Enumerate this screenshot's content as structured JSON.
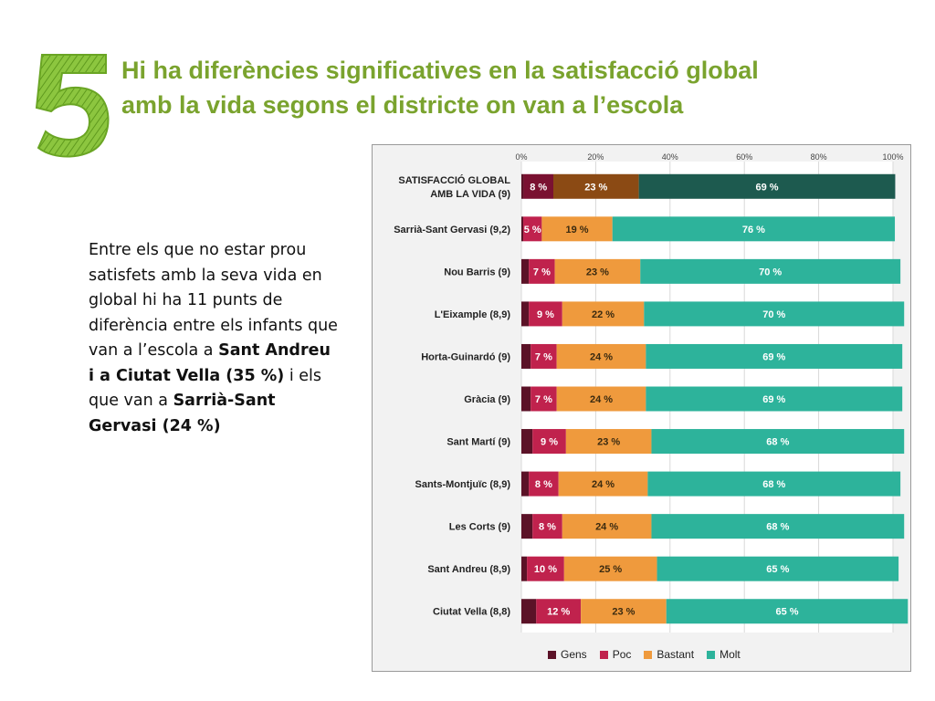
{
  "slide": {
    "number": "5",
    "title_line1": "Hi ha diferències significatives en la satisfacció global",
    "title_line2": "amb la vida segons el districte on van a l’escola"
  },
  "body_text": {
    "part1": "Entre els que no estar prou satisfets amb la seva vida en global hi ha 11 punts de diferència entre els infants que van a l’escola a ",
    "bold1": "Sant Andreu i a Ciutat Vella (35 %)",
    "part2": " i els que van a ",
    "bold2": "Sarrià-Sant Gervasi (24 %)"
  },
  "colors": {
    "gens": "#5b1227",
    "poc": "#c0224d",
    "bastant": "#ef9a3d",
    "molt": "#2db39b",
    "global_poc": "#7a1131",
    "global_bastant": "#8b4a14",
    "global_molt": "#1d5a4f",
    "title_green": "#7aa32e"
  },
  "chart_data": {
    "type": "bar",
    "orientation": "horizontal-stacked-100",
    "xlim": [
      0,
      100
    ],
    "x_ticks": [
      "0%",
      "20%",
      "40%",
      "60%",
      "80%",
      "100%"
    ],
    "categories": [
      "SATISFACCIÓ GLOBAL|AMB LA VIDA (9)",
      "Sarrià-Sant Gervasi (9,2)",
      "Nou Barris (9)",
      "L'Eixample (8,9)",
      "Horta-Guinardó (9)",
      "Gràcia (9)",
      "Sant Martí (9)",
      "Sants-Montjuïc (8,9)",
      "Les Corts (9)",
      "Sant Andreu (8,9)",
      "Ciutat Vella (8,8)"
    ],
    "series": [
      {
        "name": "Gens",
        "values": [
          0.6,
          0.5,
          2,
          2,
          2.5,
          2.5,
          3,
          2,
          3,
          1.5,
          4
        ]
      },
      {
        "name": "Poc",
        "values": [
          8,
          5,
          7,
          9,
          7,
          7,
          9,
          8,
          8,
          10,
          12
        ]
      },
      {
        "name": "Bastant",
        "values": [
          23,
          19,
          23,
          22,
          24,
          24,
          23,
          24,
          24,
          25,
          23
        ]
      },
      {
        "name": "Molt",
        "values": [
          69,
          76,
          70,
          70,
          69,
          69,
          68,
          68,
          68,
          65,
          65
        ]
      }
    ],
    "data_labels": {
      "Poc": [
        "8 %",
        "5 %",
        "7 %",
        "9 %",
        "7 %",
        "7 %",
        "9 %",
        "8 %",
        "8 %",
        "10 %",
        "12 %"
      ],
      "Bastant": [
        "23 %",
        "19 %",
        "23 %",
        "22 %",
        "24 %",
        "24 %",
        "23 %",
        "24 %",
        "24 %",
        "25 %",
        "23 %"
      ],
      "Molt": [
        "69 %",
        "76 %",
        "70 %",
        "70 %",
        "69 %",
        "69 %",
        "68 %",
        "68 %",
        "68 %",
        "65 %",
        "65 %"
      ]
    },
    "legend": [
      "Gens",
      "Poc",
      "Bastant",
      "Molt"
    ],
    "legend_position": "bottom"
  }
}
